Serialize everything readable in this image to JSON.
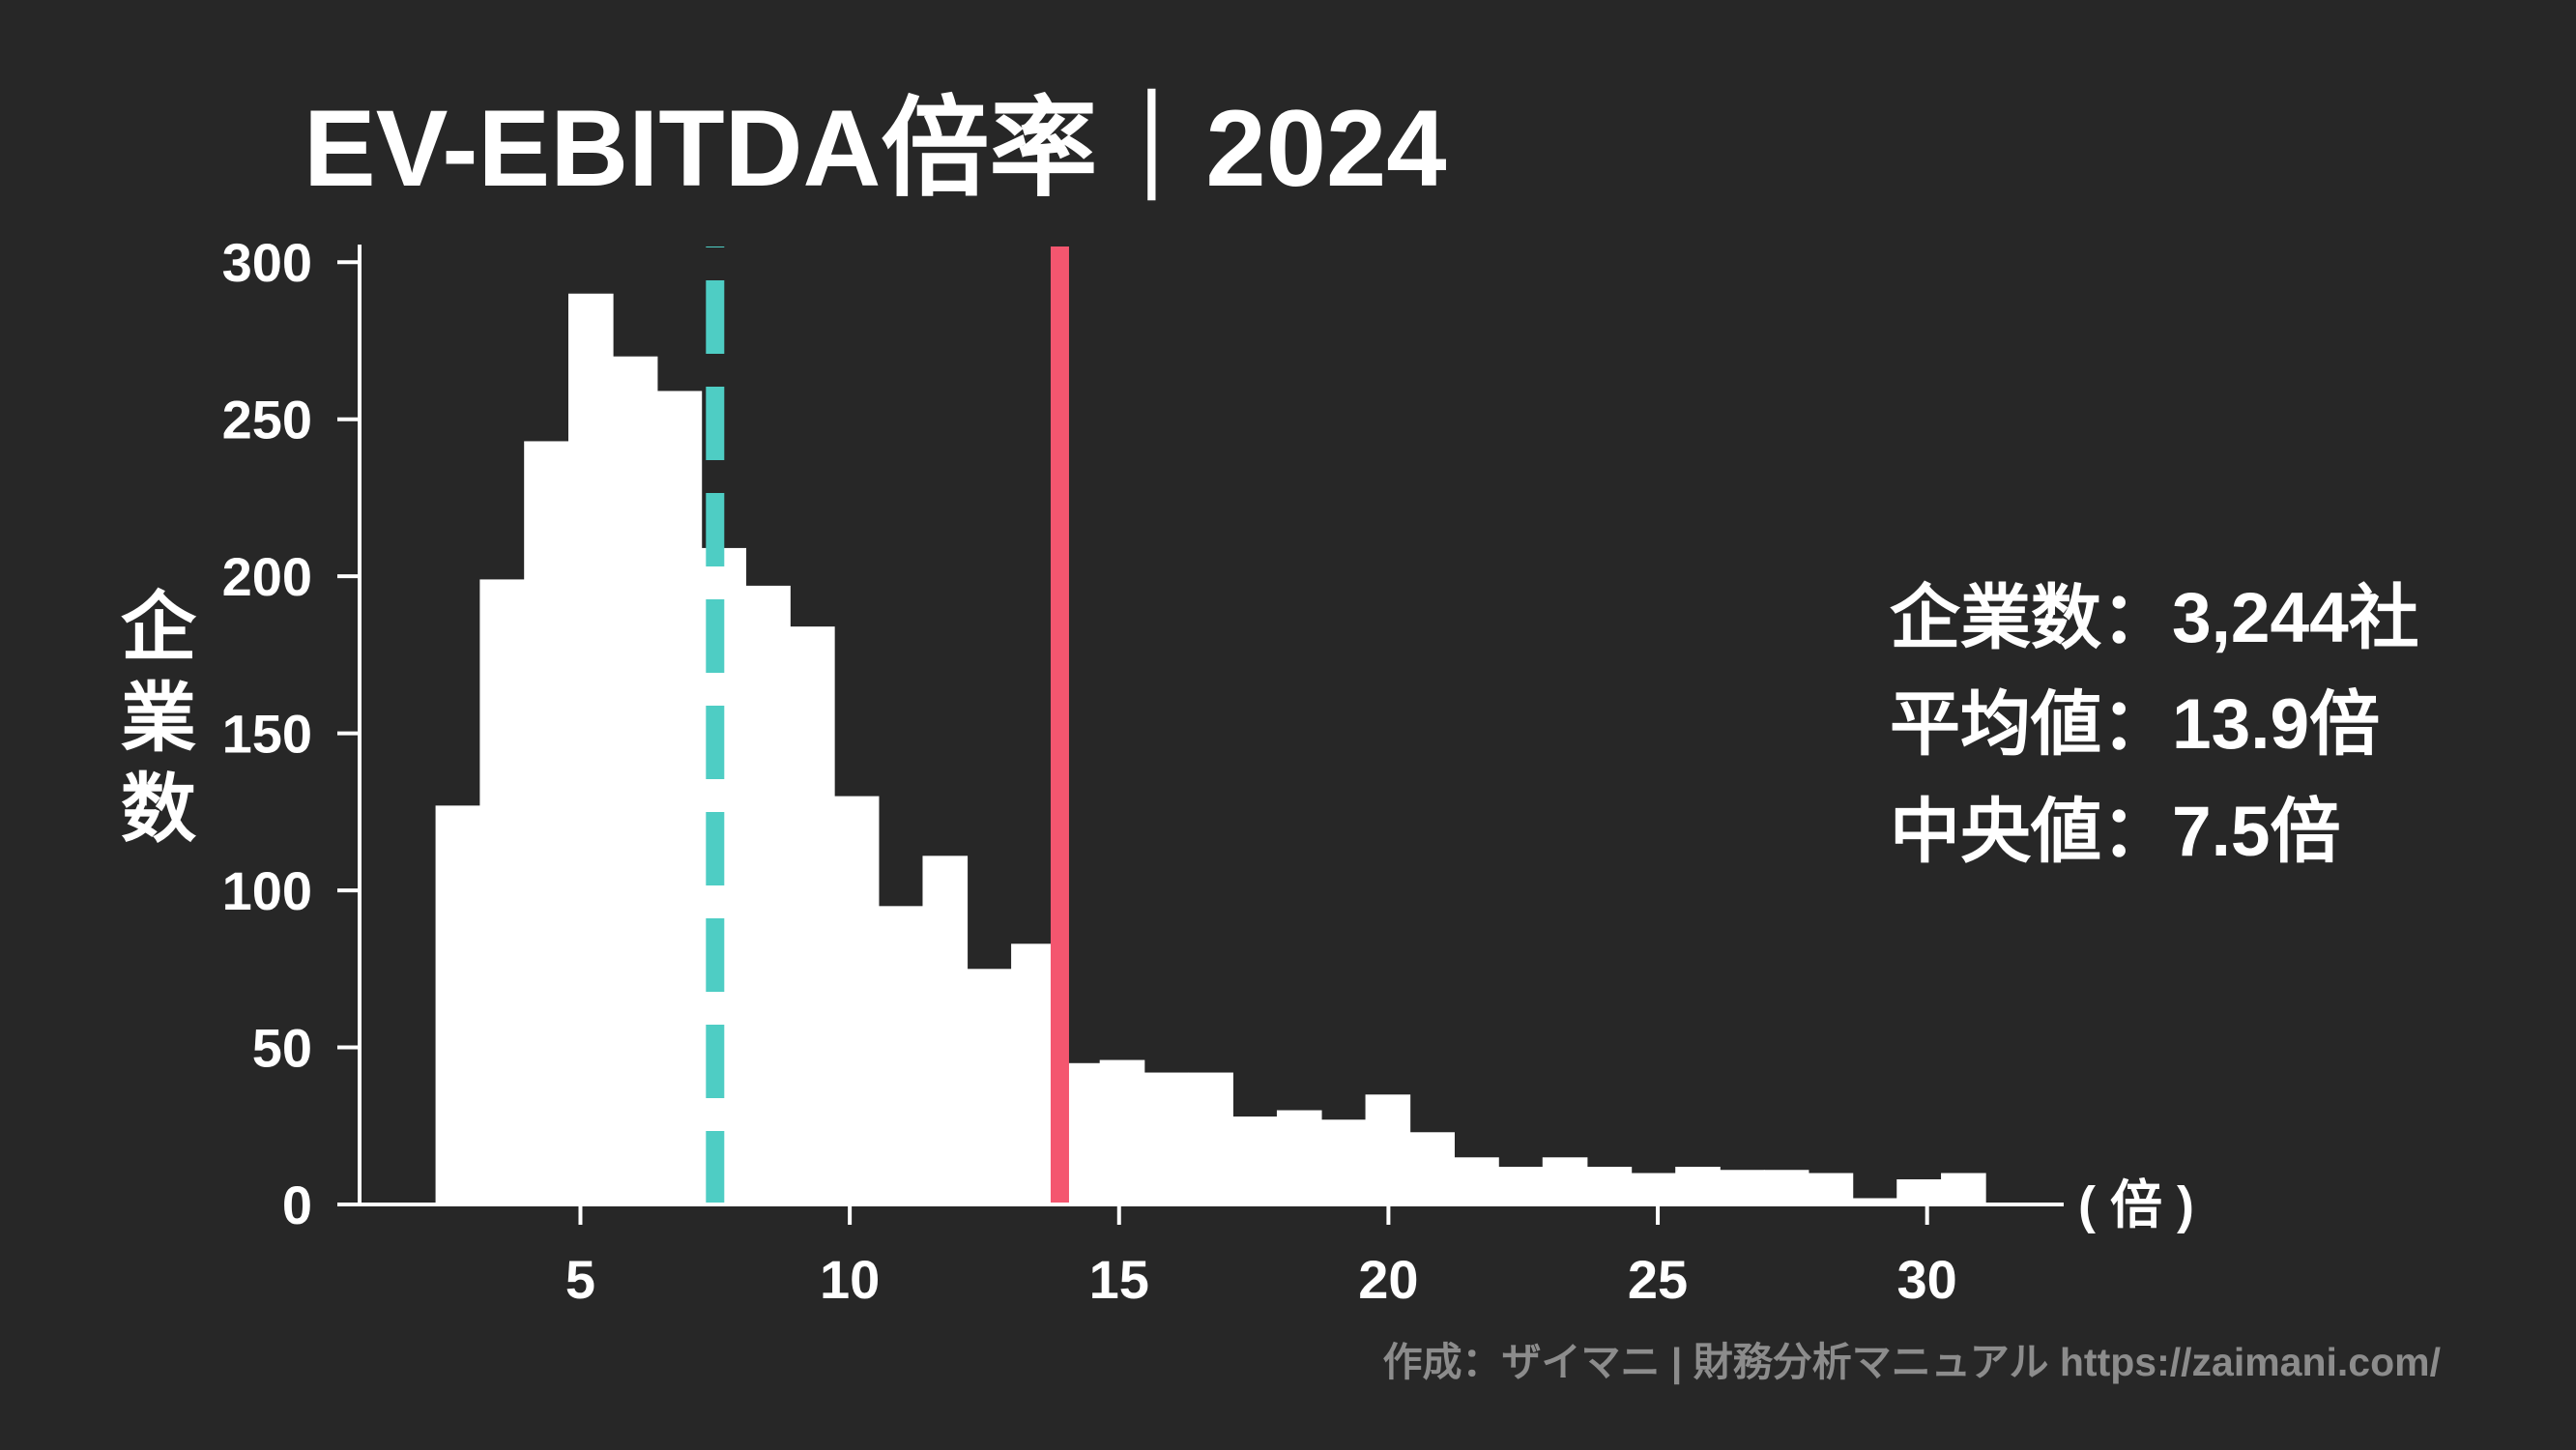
{
  "background": "#272727",
  "credit": "作成：ザイマニ | 財務分析マニュアル https://zaimani.com/",
  "chart_data": {
    "type": "bar",
    "title": "EV-EBITDA倍率｜2024",
    "xlabel": "( 倍 )",
    "ylabel": "企業数",
    "bin_start": 2.31,
    "bin_width": 0.822,
    "counts": [
      127,
      199,
      243,
      290,
      270,
      259,
      209,
      197,
      184,
      130,
      95,
      111,
      75,
      83,
      45,
      46,
      42,
      42,
      28,
      30,
      27,
      35,
      23,
      15,
      12,
      15,
      12,
      10,
      12,
      11,
      11,
      10,
      2,
      8,
      10
    ],
    "xlim": [
      0.9,
      32.5
    ],
    "ylim": [
      0,
      305
    ],
    "xticks": [
      5,
      10,
      15,
      20,
      25,
      30
    ],
    "yticks": [
      0,
      50,
      100,
      150,
      200,
      250,
      300
    ],
    "grid": false,
    "bar_color": "#ffffff",
    "legend_position": "right",
    "annotations": [
      {
        "label": "企業数",
        "sep": "：",
        "value": "3,244社",
        "color": "#ffffff"
      },
      {
        "label": "平均値",
        "sep": "：",
        "value": "13.9倍",
        "color": "#f4566f",
        "x": 13.9,
        "line": "solid"
      },
      {
        "label": "中央値",
        "sep": "：",
        "value": "7.5倍",
        "color": "#4ecdc4",
        "x": 7.5,
        "line": "dashed"
      }
    ]
  }
}
